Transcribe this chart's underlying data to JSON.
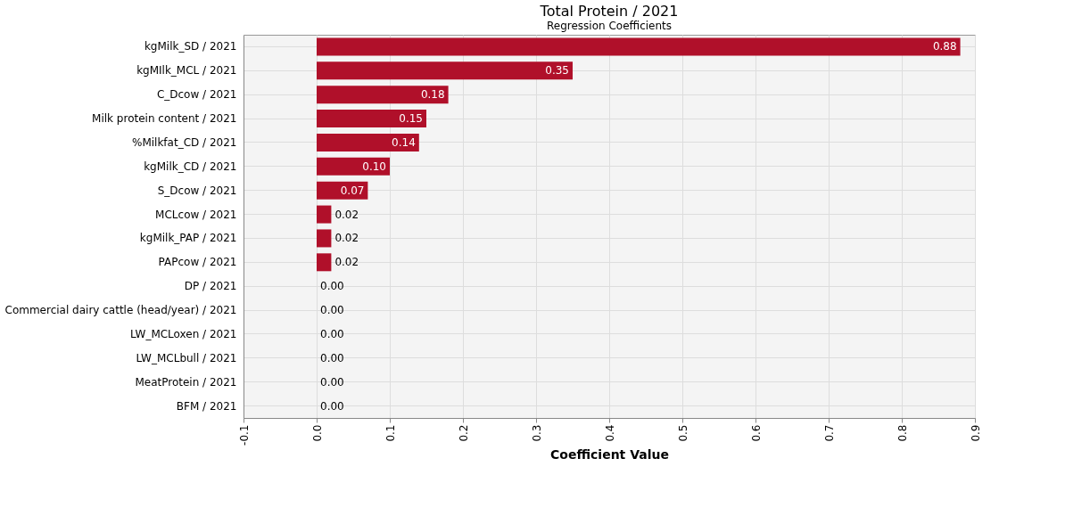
{
  "chart_data": {
    "type": "bar",
    "orientation": "horizontal",
    "title": "Total Protein / 2021",
    "subtitle": "Regression Coefficients",
    "xlabel": "Coefficient Value",
    "categories": [
      "kgMilk_SD / 2021",
      "kgMIlk_MCL / 2021",
      "C_Dcow / 2021",
      "Milk protein content / 2021",
      "%Milkfat_CD / 2021",
      "kgMilk_CD / 2021",
      "S_Dcow / 2021",
      "MCLcow / 2021",
      "kgMilk_PAP / 2021",
      "PAPcow / 2021",
      "DP / 2021",
      "Commercial dairy cattle (head/year) / 2021",
      "LW_MCLoxen / 2021",
      "LW_MCLbull / 2021",
      "MeatProtein / 2021",
      "BFM / 2021"
    ],
    "values": [
      0.88,
      0.35,
      0.18,
      0.15,
      0.14,
      0.1,
      0.07,
      0.02,
      0.02,
      0.02,
      0.0,
      0.0,
      0.0,
      0.0,
      0.0,
      0.0
    ],
    "value_labels": [
      "0.88",
      "0.35",
      "0.18",
      "0.15",
      "0.14",
      "0.10",
      "0.07",
      "0.02",
      "0.02",
      "0.02",
      "0.00",
      "0.00",
      "0.00",
      "0.00",
      "0.00",
      "0.00"
    ],
    "color": "#b0102a",
    "xlim": [
      -0.1,
      0.9
    ],
    "xticks": [
      -0.1,
      {
        "value": 0,
        "label": "0.0"
      },
      0.1,
      0.2,
      0.3,
      0.4,
      0.5,
      0.6,
      0.7,
      0.8,
      0.9
    ],
    "grid": true
  }
}
